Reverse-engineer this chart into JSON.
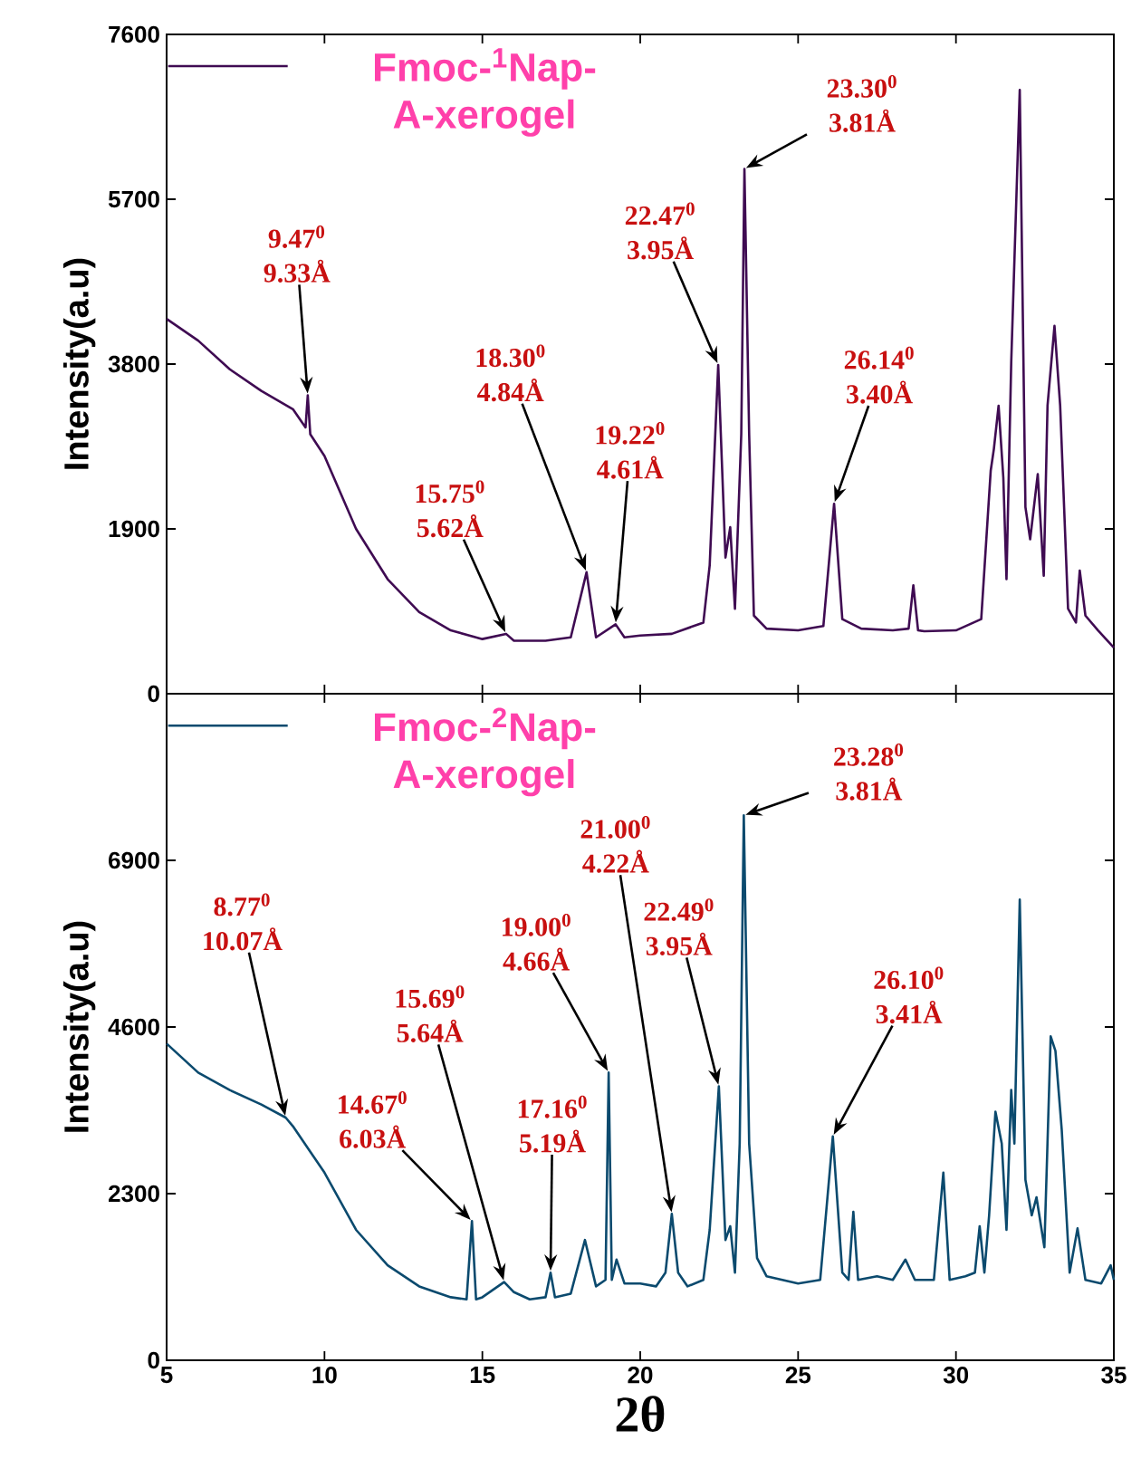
{
  "chart_data": [
    {
      "type": "line",
      "xlim": [
        5,
        35
      ],
      "ylim": [
        0,
        7600
      ],
      "xticks": [
        5,
        10,
        15,
        20,
        25,
        30,
        35
      ],
      "yticks": [
        0,
        1900,
        3800,
        5700,
        7600
      ],
      "tick_labels": "y",
      "ylabel": "Intensity(a.u)",
      "legend": "top left",
      "series": [
        {
          "name": "Fmoc-$^{1}$Nap-A-xerogel",
          "color": "#3f0b52",
          "x": [
            5,
            6,
            7,
            8,
            9,
            9.4,
            9.47,
            9.55,
            10,
            11,
            12,
            13,
            14,
            15,
            15.75,
            16,
            17,
            17.8,
            18.3,
            18.6,
            19.22,
            19.5,
            20,
            21,
            22,
            22.2,
            22.47,
            22.7,
            22.85,
            23.0,
            23.2,
            23.3,
            23.45,
            23.6,
            24,
            25,
            25.8,
            26.14,
            26.4,
            27,
            28,
            28.5,
            28.65,
            28.8,
            29,
            30,
            30.8,
            31.1,
            31.2,
            31.35,
            31.5,
            31.6,
            31.75,
            32.02,
            32.2,
            32.35,
            32.59,
            32.78,
            32.9,
            33.12,
            33.3,
            33.55,
            33.8,
            33.92,
            34.1,
            34.5,
            35
          ],
          "values": [
            4320,
            4070,
            3740,
            3490,
            3280,
            3070,
            3440,
            2990,
            2740,
            1900,
            1320,
            940,
            730,
            630,
            690,
            610,
            610,
            650,
            1400,
            650,
            800,
            650,
            670,
            690,
            820,
            1480,
            3790,
            1570,
            1920,
            980,
            2990,
            6050,
            2990,
            900,
            750,
            730,
            780,
            2190,
            860,
            750,
            730,
            750,
            1250,
            730,
            720,
            730,
            860,
            2570,
            2820,
            3320,
            2490,
            1320,
            3820,
            6960,
            2150,
            1780,
            2530,
            1360,
            3320,
            4240,
            3320,
            980,
            820,
            1420,
            900,
            730,
            530
          ]
        }
      ],
      "annotations": [
        {
          "text": "9.47$^{0}$ 9.33Å",
          "x": 9.47,
          "y": 3440
        },
        {
          "text": "15.75$^{0}$ 5.62Å",
          "x": 15.75,
          "y": 690
        },
        {
          "text": "18.30$^{0}$ 4.84Å",
          "x": 18.3,
          "y": 1400
        },
        {
          "text": "19.22$^{0}$ 4.61Å",
          "x": 19.22,
          "y": 800
        },
        {
          "text": "22.47$^{0}$ 3.95Å",
          "x": 22.47,
          "y": 3790
        },
        {
          "text": "23.30$^{0}$ 3.81Å",
          "x": 23.3,
          "y": 6050
        },
        {
          "text": "26.14$^{0}$ 3.40Å",
          "x": 26.14,
          "y": 2190
        }
      ]
    },
    {
      "type": "line",
      "xlim": [
        5,
        35
      ],
      "ylim": [
        0,
        9200
      ],
      "xticks": [
        5,
        10,
        15,
        20,
        25,
        30,
        35
      ],
      "yticks": [
        0,
        2300,
        4600,
        6900
      ],
      "xlabel": "2θ",
      "ylabel": "Intensity(a.u)",
      "legend": "top left",
      "series": [
        {
          "name": "Fmoc-$^{2}$Nap-A-xerogel",
          "color": "#0b4a6e",
          "x": [
            5,
            6,
            7,
            8,
            8.77,
            9,
            10,
            11,
            12,
            13,
            14,
            14.5,
            14.67,
            14.8,
            15,
            15.69,
            16,
            16.5,
            17,
            17.16,
            17.3,
            17.8,
            18.25,
            18.6,
            18.9,
            19.0,
            19.1,
            19.25,
            19.5,
            20,
            20.5,
            20.8,
            21.0,
            21.2,
            21.5,
            22,
            22.2,
            22.49,
            22.7,
            22.85,
            23.0,
            23.15,
            23.28,
            23.45,
            23.7,
            24,
            25,
            25.7,
            26.1,
            26.4,
            26.6,
            26.75,
            26.9,
            27.5,
            28,
            28.4,
            28.7,
            29.3,
            29.6,
            29.8,
            30.3,
            30.6,
            30.75,
            30.9,
            31.05,
            31.25,
            31.45,
            31.6,
            31.75,
            31.85,
            32.02,
            32.2,
            32.4,
            32.55,
            32.8,
            33.0,
            33.15,
            33.35,
            33.6,
            33.85,
            34.1,
            34.6,
            34.9,
            35
          ],
          "values": [
            4370,
            3970,
            3730,
            3530,
            3350,
            3230,
            2590,
            1800,
            1310,
            1020,
            870,
            840,
            1920,
            840,
            870,
            1080,
            940,
            840,
            870,
            1210,
            870,
            920,
            1660,
            1020,
            1110,
            3970,
            1110,
            1390,
            1060,
            1060,
            1020,
            1210,
            2020,
            1210,
            1020,
            1110,
            1800,
            3780,
            1660,
            1850,
            1210,
            2990,
            7520,
            2990,
            1410,
            1160,
            1060,
            1110,
            3090,
            1210,
            1110,
            2050,
            1110,
            1160,
            1110,
            1390,
            1110,
            1110,
            2590,
            1110,
            1160,
            1210,
            1850,
            1210,
            2000,
            3430,
            2990,
            1800,
            3730,
            2990,
            6360,
            2490,
            2000,
            2250,
            1560,
            4470,
            4270,
            3180,
            1210,
            1820,
            1110,
            1060,
            1310,
            1110
          ]
        }
      ],
      "annotations": [
        {
          "text": "8.77$^{0}$ 10.07Å",
          "x": 8.77,
          "y": 3350
        },
        {
          "text": "14.67$^{0}$ 6.03Å",
          "x": 14.67,
          "y": 1920
        },
        {
          "text": "15.69$^{0}$ 5.64Å",
          "x": 15.69,
          "y": 1080
        },
        {
          "text": "17.16$^{0}$ 5.19Å",
          "x": 17.16,
          "y": 1210
        },
        {
          "text": "19.00$^{0}$ 4.66Å",
          "x": 19.0,
          "y": 3970
        },
        {
          "text": "21.00$^{0}$ 4.22Å",
          "x": 21.0,
          "y": 2020
        },
        {
          "text": "22.49$^{0}$ 3.95Å",
          "x": 22.49,
          "y": 3780
        },
        {
          "text": "23.28$^{0}$ 3.81Å",
          "x": 23.28,
          "y": 7520
        },
        {
          "text": "26.10$^{0}$ 3.41Å",
          "x": 26.1,
          "y": 3090
        }
      ]
    }
  ]
}
